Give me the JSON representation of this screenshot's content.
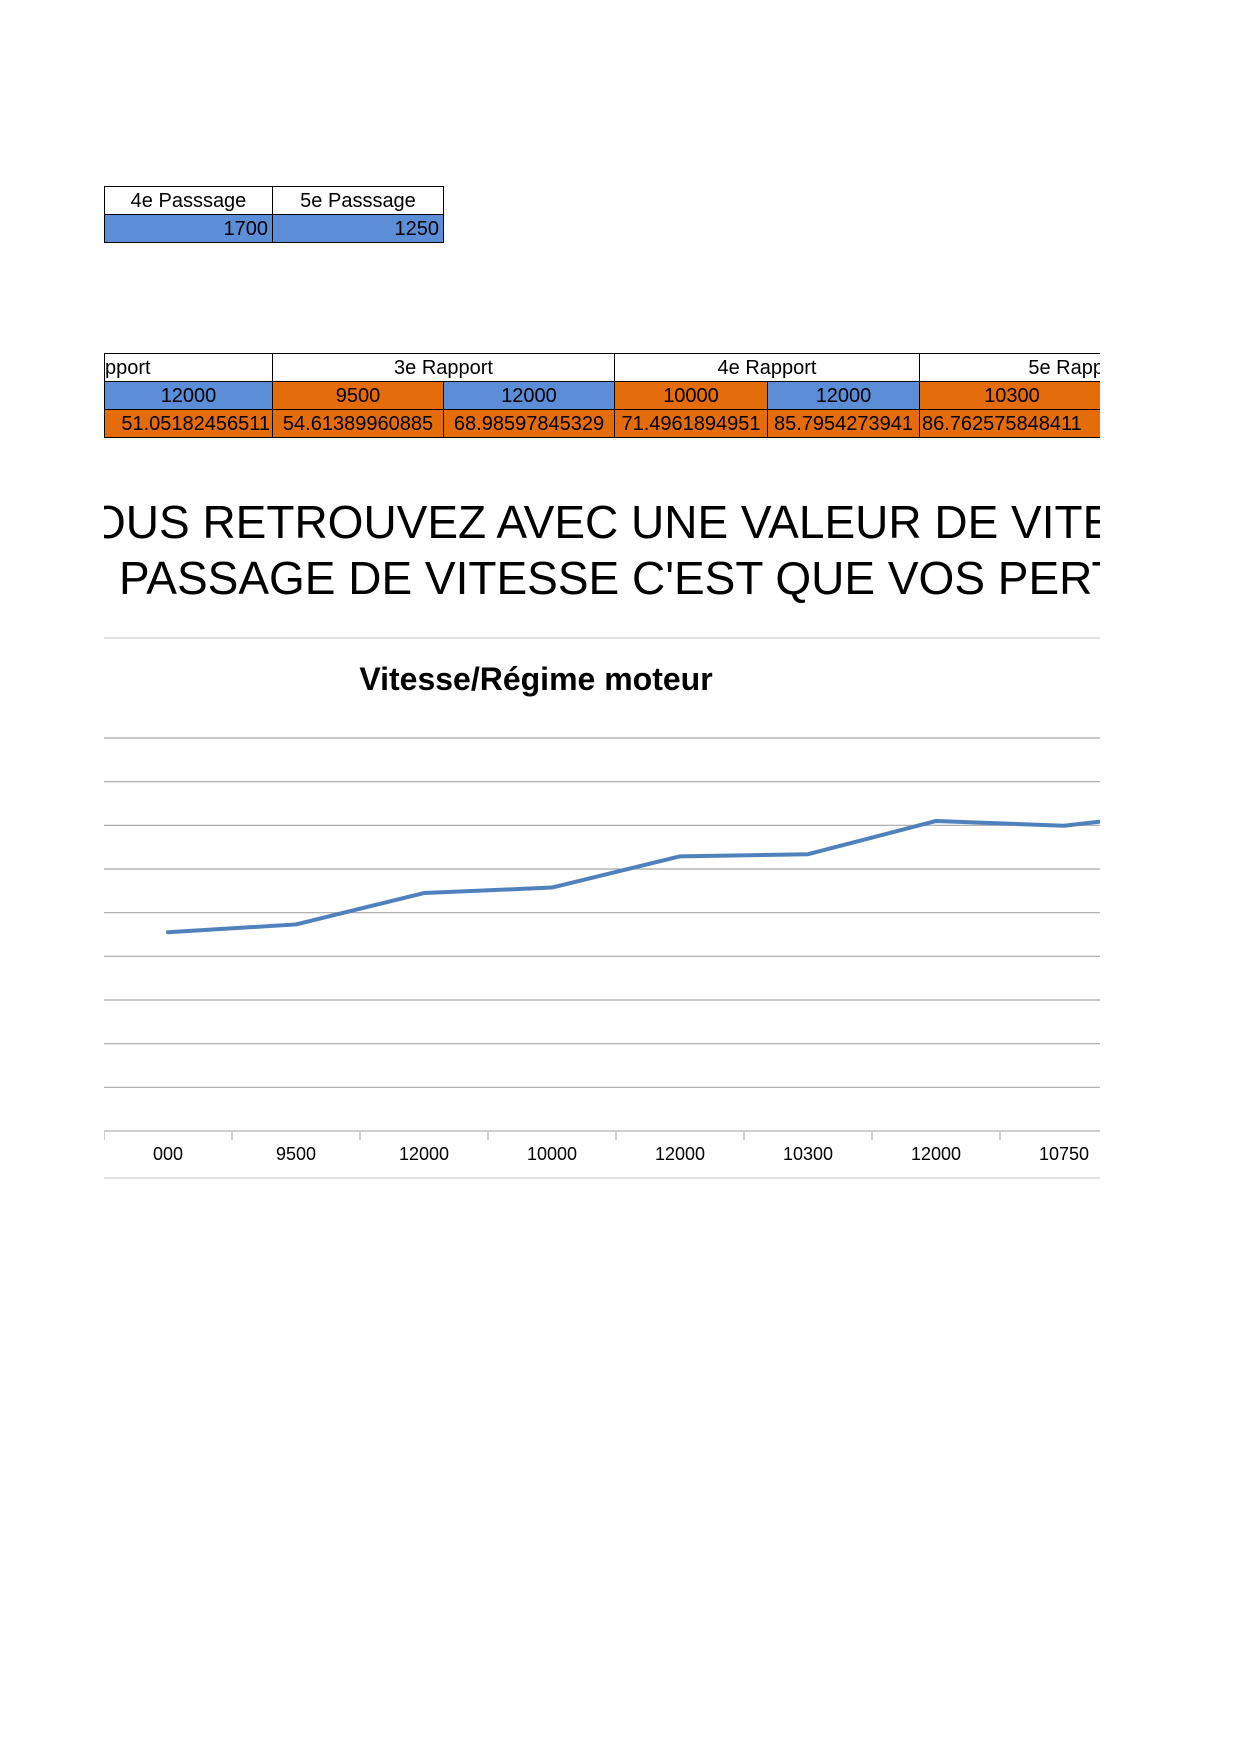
{
  "passages_table": {
    "headers": [
      "4e Passsage",
      "5e Passsage"
    ],
    "values": [
      "1700",
      "1250"
    ]
  },
  "rapport_table": {
    "groups": [
      "pport",
      "3e Rapport",
      "4e Rapport",
      "5e Rapp"
    ],
    "rpm_row": [
      "12000",
      "9500",
      "12000",
      "10000",
      "12000",
      "10300"
    ],
    "speed_row": [
      "51.05182456511",
      "54.61389960885",
      "68.98597845329",
      "71.4961894951",
      "85.7954273941",
      "86.762575848411"
    ]
  },
  "heading": {
    "line1": "OUS RETROUVEZ AVEC UNE VALEUR DE VITESSE",
    "line2": "PASSAGE DE VITESSE C'EST QUE VOS PERTES"
  },
  "colors": {
    "blue_fill": "#5b8ed6",
    "orange_fill": "#e46c0a",
    "line": "#4f81bd",
    "gridline": "#a6a6a6"
  },
  "chart_data": {
    "type": "line",
    "title": "Vitesse/Régime moteur",
    "categories": [
      "12000",
      "9500",
      "12000",
      "10000",
      "12000",
      "10300",
      "12000",
      "10750",
      ""
    ],
    "tick_labels": [
      "000",
      "9500",
      "12000",
      "10000",
      "12000",
      "10300",
      "12000",
      "10750",
      ""
    ],
    "series": [
      {
        "values": [
          51.05,
          54.61,
          68.99,
          71.5,
          85.8,
          86.76,
          102.0,
          99.8,
          106.5
        ]
      }
    ],
    "ylim": [
      -40,
      140
    ],
    "grid": true,
    "legend": "none"
  }
}
